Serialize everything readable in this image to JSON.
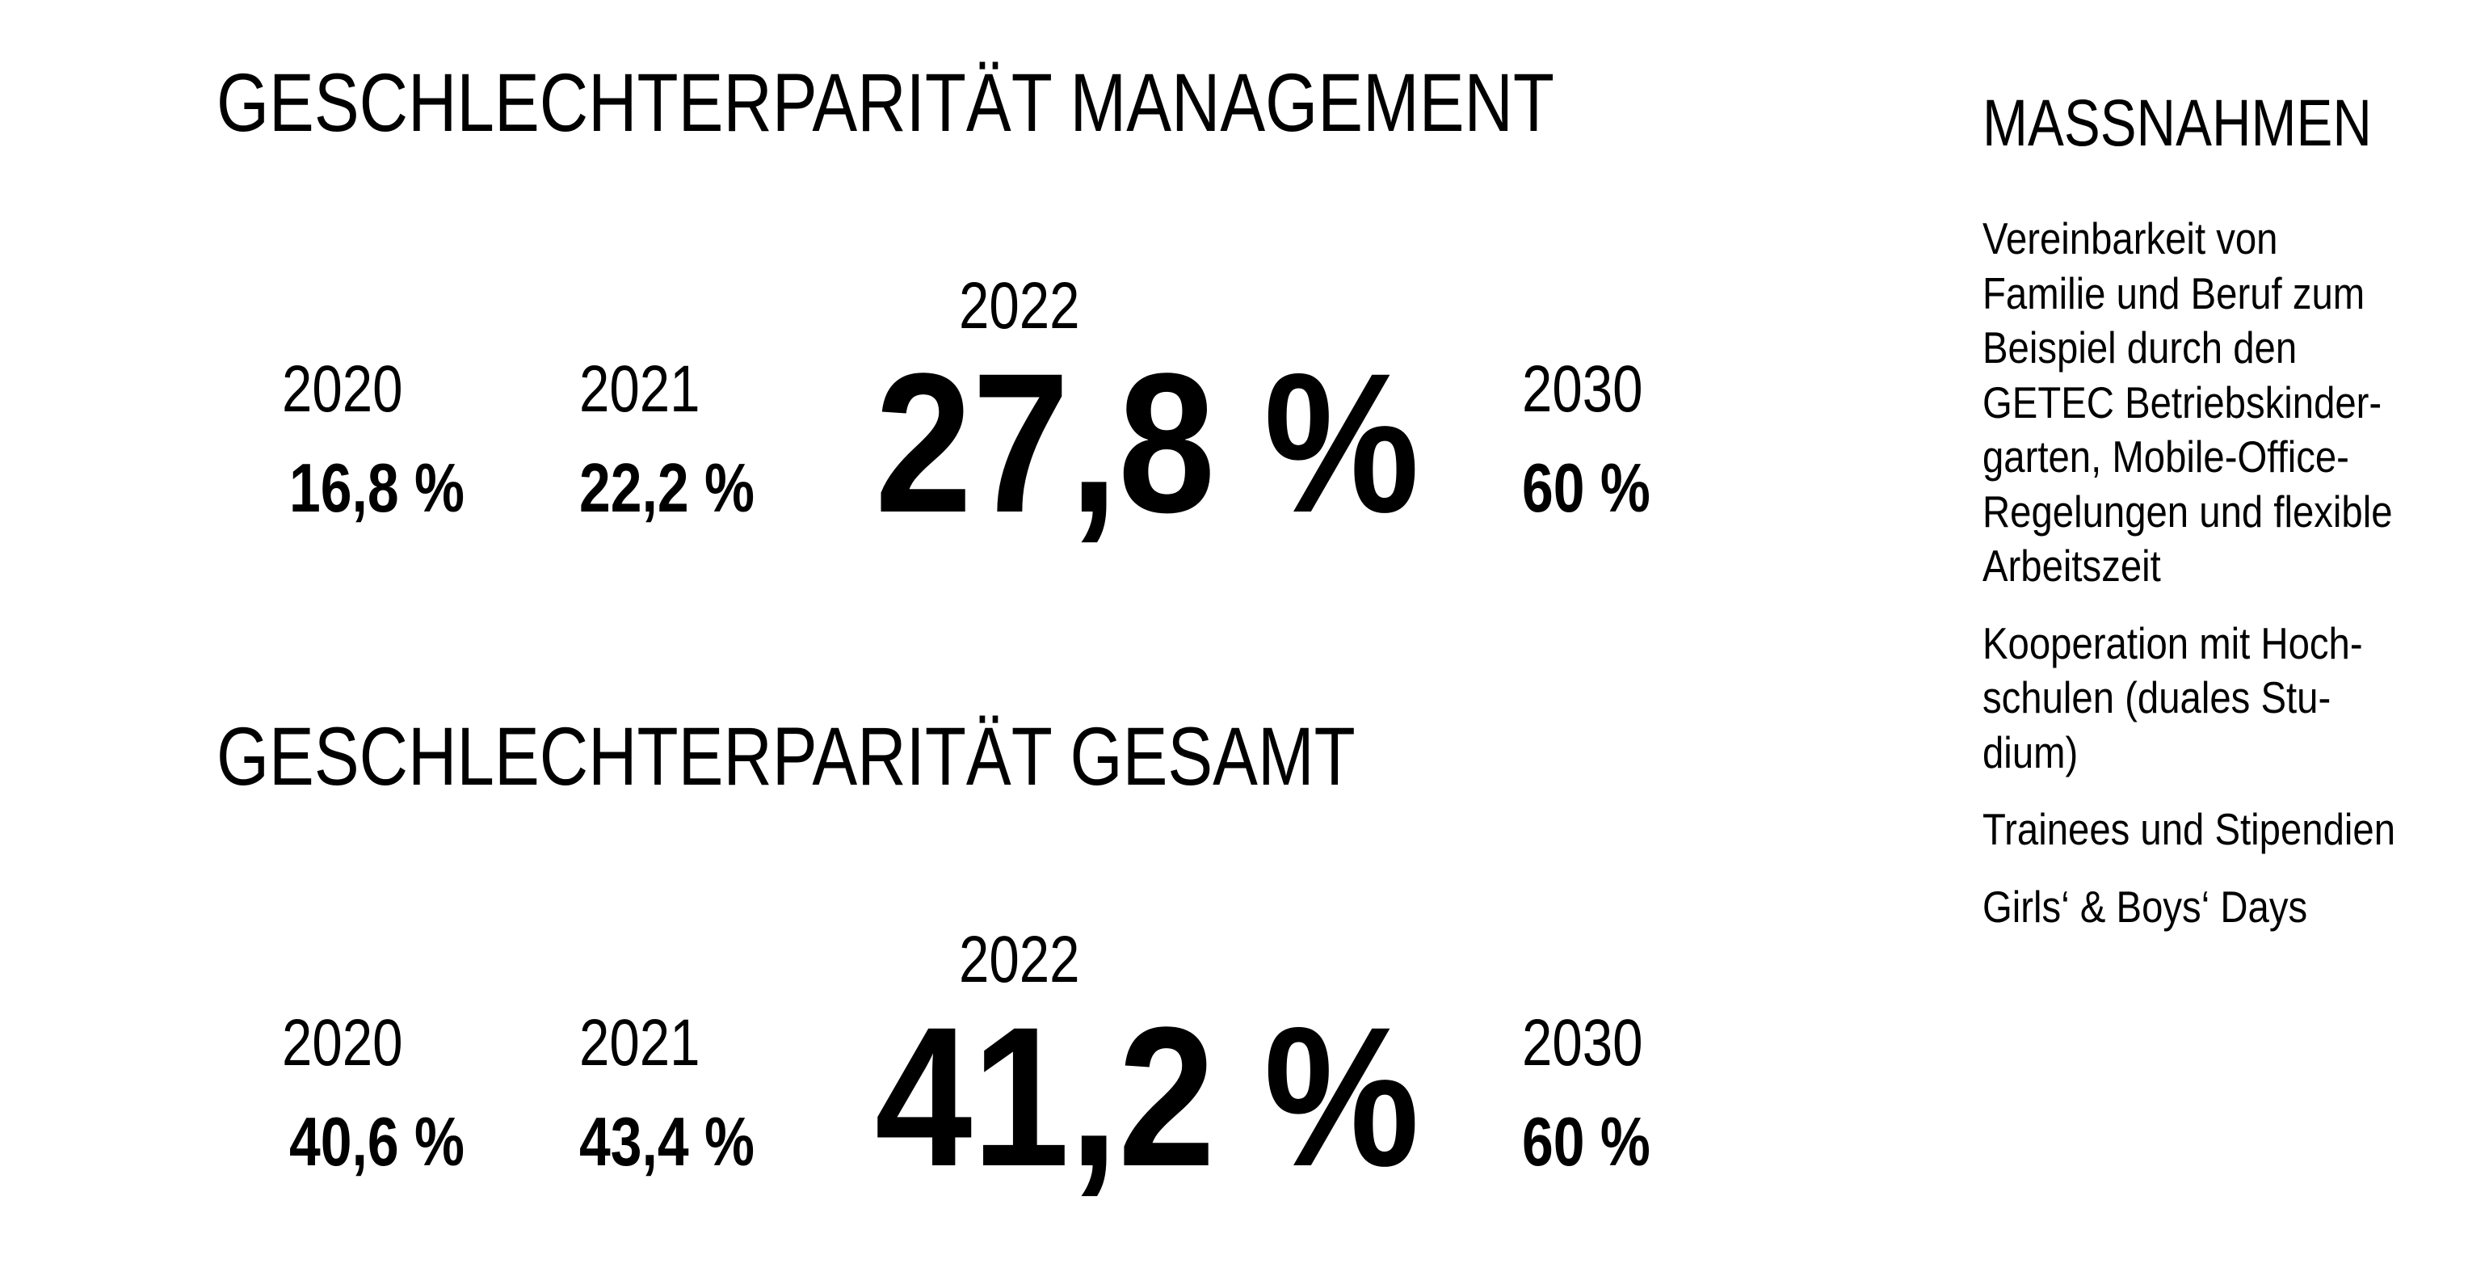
{
  "sections": [
    {
      "title": "GESCHLECHTERPARITÄT MANAGEMENT",
      "highlight": {
        "year": "2022",
        "value": "27,8 %"
      },
      "items": [
        {
          "year": "2020",
          "value": "16,8 %"
        },
        {
          "year": "2021",
          "value": "22,2 %"
        },
        {
          "year": "2030",
          "value": "60 %"
        }
      ]
    },
    {
      "title": "GESCHLECHTERPARITÄT GESAMT",
      "highlight": {
        "year": "2022",
        "value": "41,2 %"
      },
      "items": [
        {
          "year": "2020",
          "value": "40,6 %"
        },
        {
          "year": "2021",
          "value": "43,4 %"
        },
        {
          "year": "2030",
          "value": "60 %"
        }
      ]
    }
  ],
  "measures": {
    "title": "MASSNAHMEN",
    "paragraphs": [
      [
        "Vereinbarkeit von",
        "Familie und Beruf zum",
        "Beispiel durch den",
        "GETEC Betriebskinder-",
        "garten, Mobile-Office-",
        "Regelungen und flexible",
        "Arbeitszeit"
      ],
      [
        "Kooperation mit Hoch-",
        "schulen (duales Stu-",
        "dium)"
      ],
      [
        "Trainees und Stipendien"
      ],
      [
        "Girls‘ & Boys‘ Days"
      ]
    ]
  }
}
